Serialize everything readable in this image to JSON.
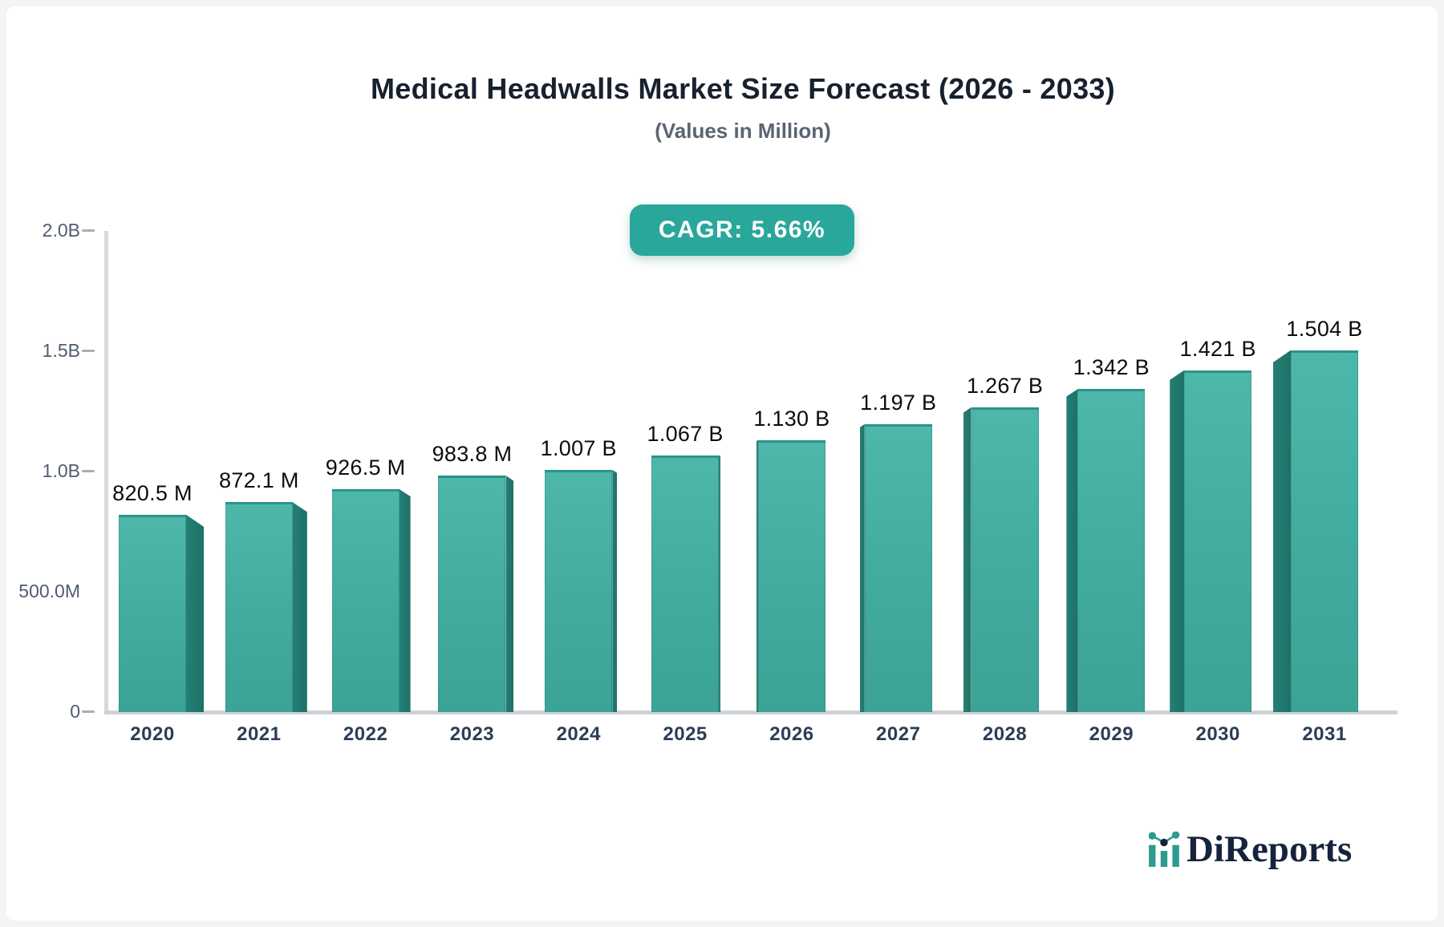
{
  "header": {
    "title": "Medical Headwalls Market Size Forecast (2026 - 2033)",
    "subtitle": "(Values in Million)",
    "cagr_badge": "CAGR: 5.66%"
  },
  "chart_data": {
    "type": "bar",
    "title": "Medical Headwalls Market Size Forecast (2026 - 2033)",
    "subtitle": "(Values in Million)",
    "annotation": "CAGR: 5.66%",
    "categories": [
      "2020",
      "2021",
      "2022",
      "2023",
      "2024",
      "2025",
      "2026",
      "2027",
      "2028",
      "2029",
      "2030",
      "2031"
    ],
    "values_in_millions": [
      820.5,
      872.1,
      926.5,
      983.8,
      1007,
      1067,
      1130,
      1197,
      1267,
      1342,
      1421,
      1504
    ],
    "bar_labels": [
      "820.5 M",
      "872.1 M",
      "926.5 M",
      "983.8 M",
      "1.007 B",
      "1.067 B",
      "1.130 B",
      "1.197 B",
      "1.267 B",
      "1.342 B",
      "1.421 B",
      "1.504 B"
    ],
    "y_axis": {
      "range_in_millions": [
        0,
        2000
      ],
      "ticks": [
        {
          "label": "2.0B",
          "value_m": 2000,
          "dash": true
        },
        {
          "label": "1.5B",
          "value_m": 1500,
          "dash": true
        },
        {
          "label": "1.0B",
          "value_m": 1000,
          "dash": true
        },
        {
          "label": "500.0M",
          "value_m": 500,
          "dash": false
        },
        {
          "label": "0",
          "value_m": 0,
          "dash": true
        }
      ]
    },
    "grid": false,
    "legend": "none",
    "colors": {
      "bar_front": "#45b1a3",
      "bar_side": "#20786d",
      "bar_top_edge": "#2a9488",
      "badge_background": "#2aa79b",
      "badge_text": "#ffffff",
      "axis_line": "#d6d9de",
      "value_label": "#0b0d10",
      "category_label": "#2c3d55",
      "tick_label": "#505c6e"
    }
  },
  "logo": {
    "text": "DiReports",
    "icon": "bar-chart-logo-icon",
    "icon_teal": "#2d9b90",
    "icon_navy": "#16233c"
  }
}
